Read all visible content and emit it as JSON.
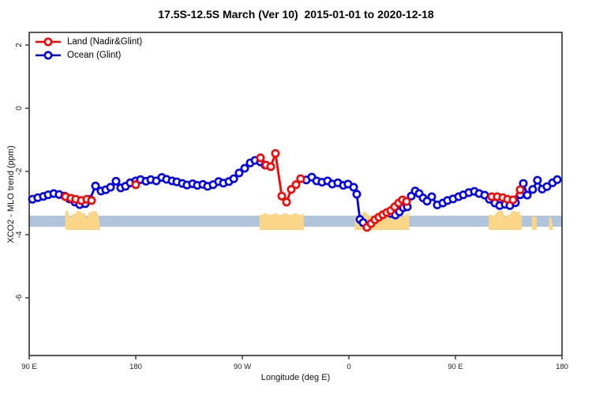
{
  "title": "17.5S-12.5S March (Ver 10)  2015-01-01 to 2020-12-18",
  "chart_data": {
    "type": "line",
    "title": "17.5S-12.5S March (Ver 10)  2015-01-01 to 2020-12-18",
    "xlabel": "Longitude (deg E)",
    "ylabel": "XCO2 - MLO trend (ppm)",
    "xlim": [
      90,
      540
    ],
    "ylim": [
      -7.8,
      2.4
    ],
    "grid": false,
    "legend_position": "top-left",
    "xticks": [
      {
        "lon": 90,
        "label": "90 E"
      },
      {
        "lon": 180,
        "label": "180"
      },
      {
        "lon": 270,
        "label": "90 W"
      },
      {
        "lon": 360,
        "label": "0"
      },
      {
        "lon": 450,
        "label": "90 E"
      },
      {
        "lon": 540,
        "label": "180"
      }
    ],
    "yticks": [
      {
        "value": 2,
        "label": "2"
      },
      {
        "value": 0,
        "label": "0"
      },
      {
        "value": -2,
        "label": "-2"
      },
      {
        "value": -4,
        "label": "-4"
      },
      {
        "value": -6,
        "label": "-6"
      }
    ],
    "band": {
      "value_from": -3.4,
      "value_to": -3.75,
      "color": "#b0c4de"
    },
    "land_patches": [
      {
        "from_lon": 120.5,
        "to_lon": 150.0,
        "h": 1.0,
        "solid": false
      },
      {
        "from_lon": 284.5,
        "to_lon": 322.0,
        "h": 1.0,
        "solid": true
      },
      {
        "from_lon": 365.0,
        "to_lon": 411.0,
        "h": 0.7,
        "solid": false
      },
      {
        "from_lon": 478.0,
        "to_lon": 506.0,
        "h": 1.0,
        "solid": false
      },
      {
        "from_lon": 514.5,
        "to_lon": 518.5,
        "h": 0.4,
        "solid": false
      },
      {
        "from_lon": 529.0,
        "to_lon": 532.5,
        "h": 0.3,
        "solid": false
      }
    ],
    "patch_color": "#fbd687",
    "series": [
      {
        "name": "Ocean (Glint)",
        "color": "#0000ee",
        "segments": [
          [
            [
              92.7,
              -2.88
            ],
            [
              97.3,
              -2.83
            ],
            [
              102,
              -2.79
            ],
            [
              106,
              -2.74
            ],
            [
              110.7,
              -2.7
            ],
            [
              115.3,
              -2.73
            ],
            [
              120,
              -2.78
            ],
            [
              124,
              -2.87
            ],
            [
              128.7,
              -2.97
            ],
            [
              132.7,
              -3.05
            ],
            [
              137.3,
              -3.02
            ],
            [
              141.3,
              -2.88
            ],
            [
              146,
              -2.46
            ],
            [
              150.7,
              -2.62
            ],
            [
              154.7,
              -2.58
            ],
            [
              158.7,
              -2.5
            ],
            [
              163.3,
              -2.31
            ],
            [
              167.3,
              -2.52
            ],
            [
              171.3,
              -2.47
            ],
            [
              175.3,
              -2.36
            ],
            [
              180,
              -2.3
            ],
            [
              184,
              -2.26
            ],
            [
              188.7,
              -2.31
            ],
            [
              192.7,
              -2.26
            ],
            [
              197.3,
              -2.3
            ],
            [
              202,
              -2.19
            ],
            [
              206,
              -2.25
            ],
            [
              210.7,
              -2.3
            ],
            [
              214.7,
              -2.33
            ],
            [
              219.3,
              -2.38
            ],
            [
              223.3,
              -2.43
            ],
            [
              228,
              -2.39
            ],
            [
              232,
              -2.44
            ],
            [
              236.7,
              -2.41
            ],
            [
              240.7,
              -2.47
            ],
            [
              245.3,
              -2.42
            ],
            [
              250,
              -2.32
            ],
            [
              254,
              -2.37
            ],
            [
              258.7,
              -2.32
            ],
            [
              262.7,
              -2.23
            ],
            [
              267.3,
              -2.05
            ],
            [
              272,
              -1.9
            ],
            [
              276.7,
              -1.73
            ],
            [
              280.7,
              -1.65
            ],
            [
              285.3,
              -1.7
            ],
            [
              289.3,
              -1.8
            ]
          ],
          [
            [
              324,
              -2.27
            ],
            [
              328.7,
              -2.18
            ],
            [
              332.7,
              -2.3
            ],
            [
              337.3,
              -2.34
            ],
            [
              342,
              -2.3
            ],
            [
              346,
              -2.4
            ],
            [
              350.7,
              -2.36
            ],
            [
              355.3,
              -2.44
            ],
            [
              359.3,
              -2.4
            ],
            [
              364,
              -2.5
            ],
            [
              366.7,
              -2.72
            ],
            [
              369.3,
              -3.52
            ],
            [
              372,
              -3.62
            ]
          ],
          [
            [
              395.3,
              -3.33
            ],
            [
              399.3,
              -3.38
            ],
            [
              402.7,
              -3.28
            ],
            [
              406,
              -3.15
            ],
            [
              409.3,
              -3.12
            ],
            [
              412.7,
              -2.78
            ],
            [
              416,
              -2.62
            ],
            [
              419.3,
              -2.7
            ],
            [
              422.7,
              -2.84
            ],
            [
              426,
              -2.94
            ],
            [
              430,
              -2.8
            ],
            [
              434.7,
              -3.06
            ],
            [
              439.3,
              -3.0
            ],
            [
              443.3,
              -2.92
            ],
            [
              448,
              -2.87
            ],
            [
              452.7,
              -2.8
            ],
            [
              456.7,
              -2.74
            ],
            [
              461.3,
              -2.67
            ],
            [
              466,
              -2.63
            ],
            [
              470,
              -2.7
            ],
            [
              474.7,
              -2.75
            ],
            [
              478.7,
              -2.88
            ],
            [
              483.3,
              -3.0
            ],
            [
              487.3,
              -3.08
            ],
            [
              492,
              -3.04
            ],
            [
              496,
              -3.08
            ],
            [
              500.7,
              -2.99
            ],
            [
              504.7,
              -2.74
            ],
            [
              507.3,
              -2.38
            ],
            [
              510.7,
              -2.75
            ],
            [
              515.3,
              -2.57
            ],
            [
              519.3,
              -2.28
            ],
            [
              523.3,
              -2.56
            ],
            [
              527.3,
              -2.48
            ],
            [
              532,
              -2.36
            ],
            [
              536,
              -2.26
            ]
          ]
        ]
      },
      {
        "name": "Land (Nadir&Glint)",
        "color": "#ff0000",
        "segments": [
          [
            [
              120.7,
              -2.8
            ],
            [
              125.3,
              -2.85
            ],
            [
              129.3,
              -2.88
            ],
            [
              134,
              -2.92
            ],
            [
              138.7,
              -2.88
            ],
            [
              142.7,
              -2.92
            ]
          ],
          [
            [
              180,
              -2.42
            ]
          ],
          [
            [
              285.3,
              -1.57
            ],
            [
              290,
              -1.8
            ],
            [
              294,
              -1.85
            ],
            [
              298,
              -1.43
            ],
            [
              303.3,
              -2.78
            ],
            [
              307.3,
              -2.97
            ],
            [
              311.3,
              -2.57
            ],
            [
              315.3,
              -2.42
            ],
            [
              319.3,
              -2.23
            ]
          ],
          [
            [
              375.3,
              -3.77
            ],
            [
              378.7,
              -3.65
            ],
            [
              382,
              -3.53
            ],
            [
              385.3,
              -3.45
            ],
            [
              388.7,
              -3.37
            ],
            [
              392,
              -3.3
            ],
            [
              395.3,
              -3.24
            ],
            [
              398.7,
              -3.12
            ],
            [
              402,
              -3.0
            ],
            [
              405.3,
              -2.9
            ],
            [
              408.7,
              -2.95
            ]
          ],
          [
            [
              480.7,
              -2.8
            ],
            [
              485.3,
              -2.8
            ],
            [
              490,
              -2.83
            ],
            [
              494,
              -2.88
            ],
            [
              498.7,
              -2.9
            ],
            [
              504.7,
              -2.58
            ]
          ]
        ]
      }
    ]
  },
  "legend": {
    "items": [
      {
        "label": "Land (Nadir&Glint)"
      },
      {
        "label": "Ocean (Glint)"
      }
    ]
  }
}
